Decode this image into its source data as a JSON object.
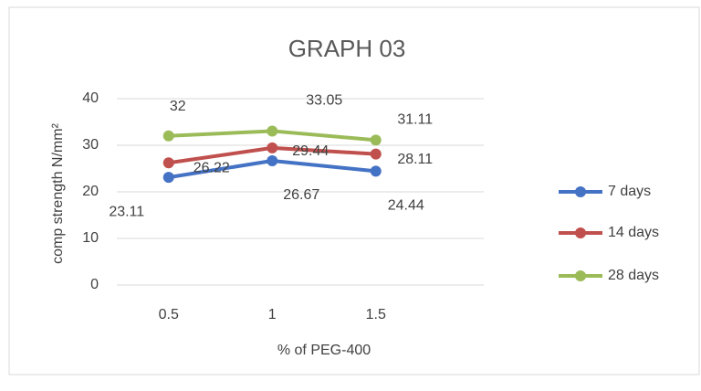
{
  "chart_data": {
    "type": "line",
    "title": "GRAPH 03",
    "x_label": "% of PEG-400",
    "y_label": "comp strength N/mm²",
    "categories": [
      "0.5",
      "1",
      "1.5"
    ],
    "series": [
      {
        "name": "7 days",
        "color": "#4472c4",
        "values": [
          23.11,
          26.67,
          24.44
        ]
      },
      {
        "name": "14 days",
        "color": "#c0504d",
        "values": [
          26.22,
          29.44,
          28.11
        ]
      },
      {
        "name": "28 days",
        "color": "#9bbb59",
        "values": [
          32,
          33.05,
          31.11
        ]
      }
    ],
    "ylim": [
      0,
      40
    ],
    "yticks": [
      0,
      10,
      20,
      30,
      40
    ],
    "grid": true,
    "legend": "right"
  }
}
